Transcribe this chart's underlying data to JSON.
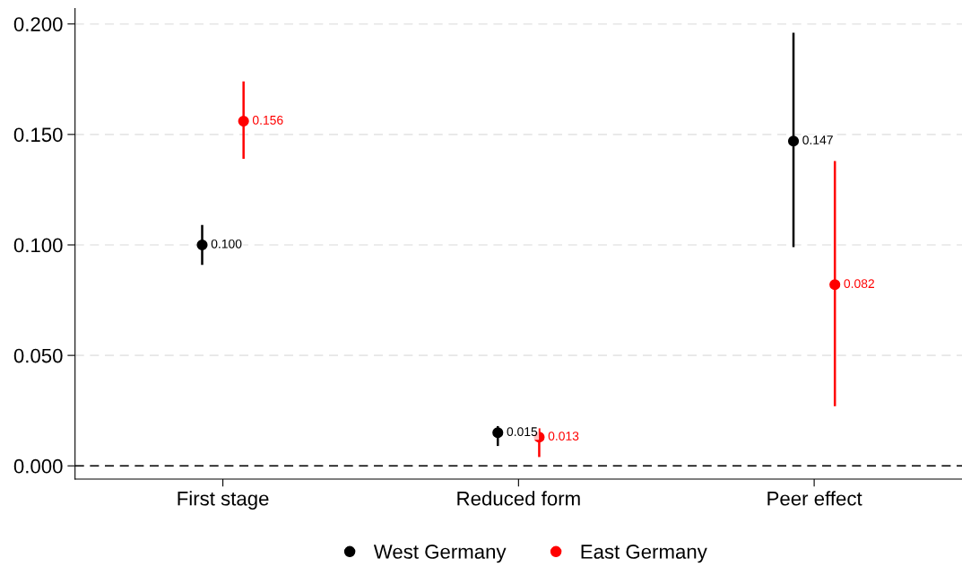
{
  "chart_data": {
    "type": "scatter",
    "categories": [
      "First stage",
      "Reduced form",
      "Peer effect"
    ],
    "ylim": [
      -0.006,
      0.207
    ],
    "yticks": [
      {
        "value": 0,
        "label": "0.000"
      },
      {
        "value": 0.05,
        "label": "0.050"
      },
      {
        "value": 0.1,
        "label": "0.100"
      },
      {
        "value": 0.15,
        "label": "0.150"
      },
      {
        "value": 0.2,
        "label": "0.200"
      }
    ],
    "series": [
      {
        "name": "West Germany",
        "color": "#000000",
        "values": [
          0.1,
          0.015,
          0.147
        ],
        "errors": [
          [
            0.091,
            0.109
          ],
          [
            0.009,
            0.018
          ],
          [
            0.099,
            0.196
          ]
        ],
        "value_labels": [
          "0.100",
          "0.015",
          "0.147"
        ]
      },
      {
        "name": "East Germany",
        "color": "#ff0000",
        "values": [
          0.156,
          0.013,
          0.082
        ],
        "errors": [
          [
            0.139,
            0.174
          ],
          [
            0.004,
            0.017
          ],
          [
            0.027,
            0.138
          ]
        ],
        "value_labels": [
          "0.156",
          "0.013",
          "0.082"
        ]
      }
    ],
    "ref_lines": [
      {
        "axis": "y",
        "value": 0,
        "label": null,
        "color": "#000000",
        "line_style": "dashed"
      }
    ],
    "grid": "y",
    "marker": "circle",
    "legend": "bottom"
  }
}
